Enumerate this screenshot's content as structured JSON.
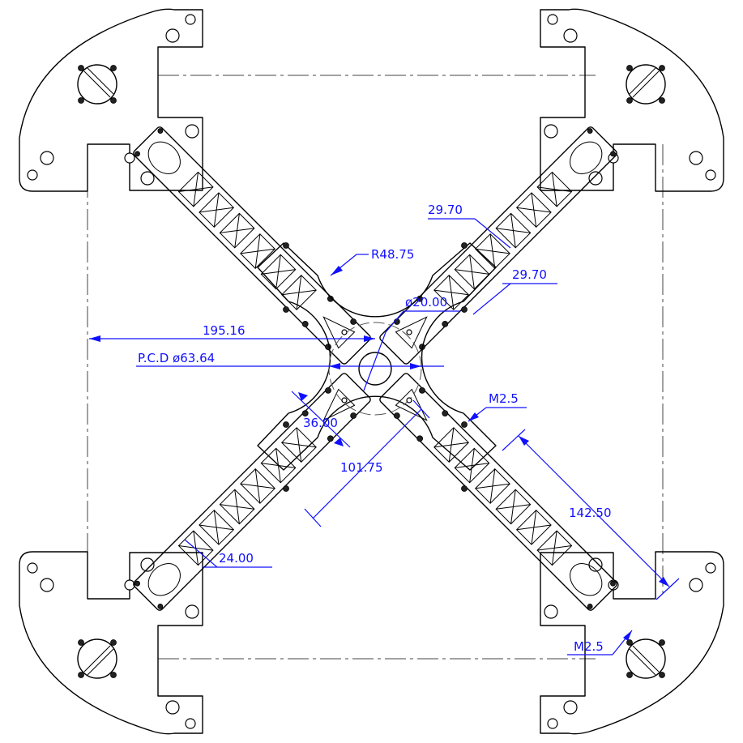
{
  "dimensions": {
    "width_span": "195.16",
    "pcd": "P.C.D  ø63.64",
    "center_hole": "ø20.00",
    "cutout_radius": "R48.75",
    "arm_gap_a": "29.70",
    "arm_gap_b": "29.70",
    "thread_upper": "M2.5",
    "thread_lower": "M2.5",
    "center_thickness": "36.00",
    "center_span": "101.75",
    "arm_length": "142.50",
    "arm_width": "24.00"
  },
  "colors": {
    "dimension": "#1010ff",
    "outline": "#000000",
    "centerline": "#444444",
    "background": "#ffffff"
  }
}
